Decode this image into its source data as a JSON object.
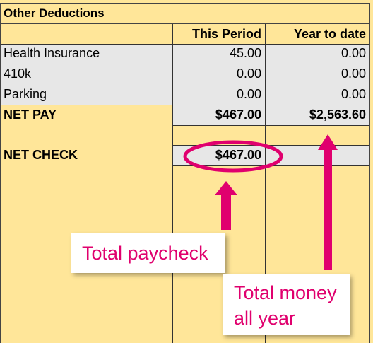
{
  "section_title": "Other Deductions",
  "columns": {
    "this_period": "This Period",
    "year_to_date": "Year to date"
  },
  "rows": [
    {
      "label": "Health Insurance",
      "this_period": "45.00",
      "year_to_date": "0.00"
    },
    {
      "label": "410k",
      "this_period": "0.00",
      "year_to_date": "0.00"
    },
    {
      "label": "Parking",
      "this_period": "0.00",
      "year_to_date": "0.00"
    }
  ],
  "net_pay": {
    "label": "NET PAY",
    "this_period": "$467.00",
    "year_to_date": "$2,563.60"
  },
  "net_check": {
    "label": "NET CHECK",
    "this_period": "$467.00"
  },
  "annotations": {
    "total_paycheck": "Total paycheck",
    "total_money_line1": "Total money",
    "total_money_line2": "all year",
    "accent_color": "#e0006e"
  }
}
